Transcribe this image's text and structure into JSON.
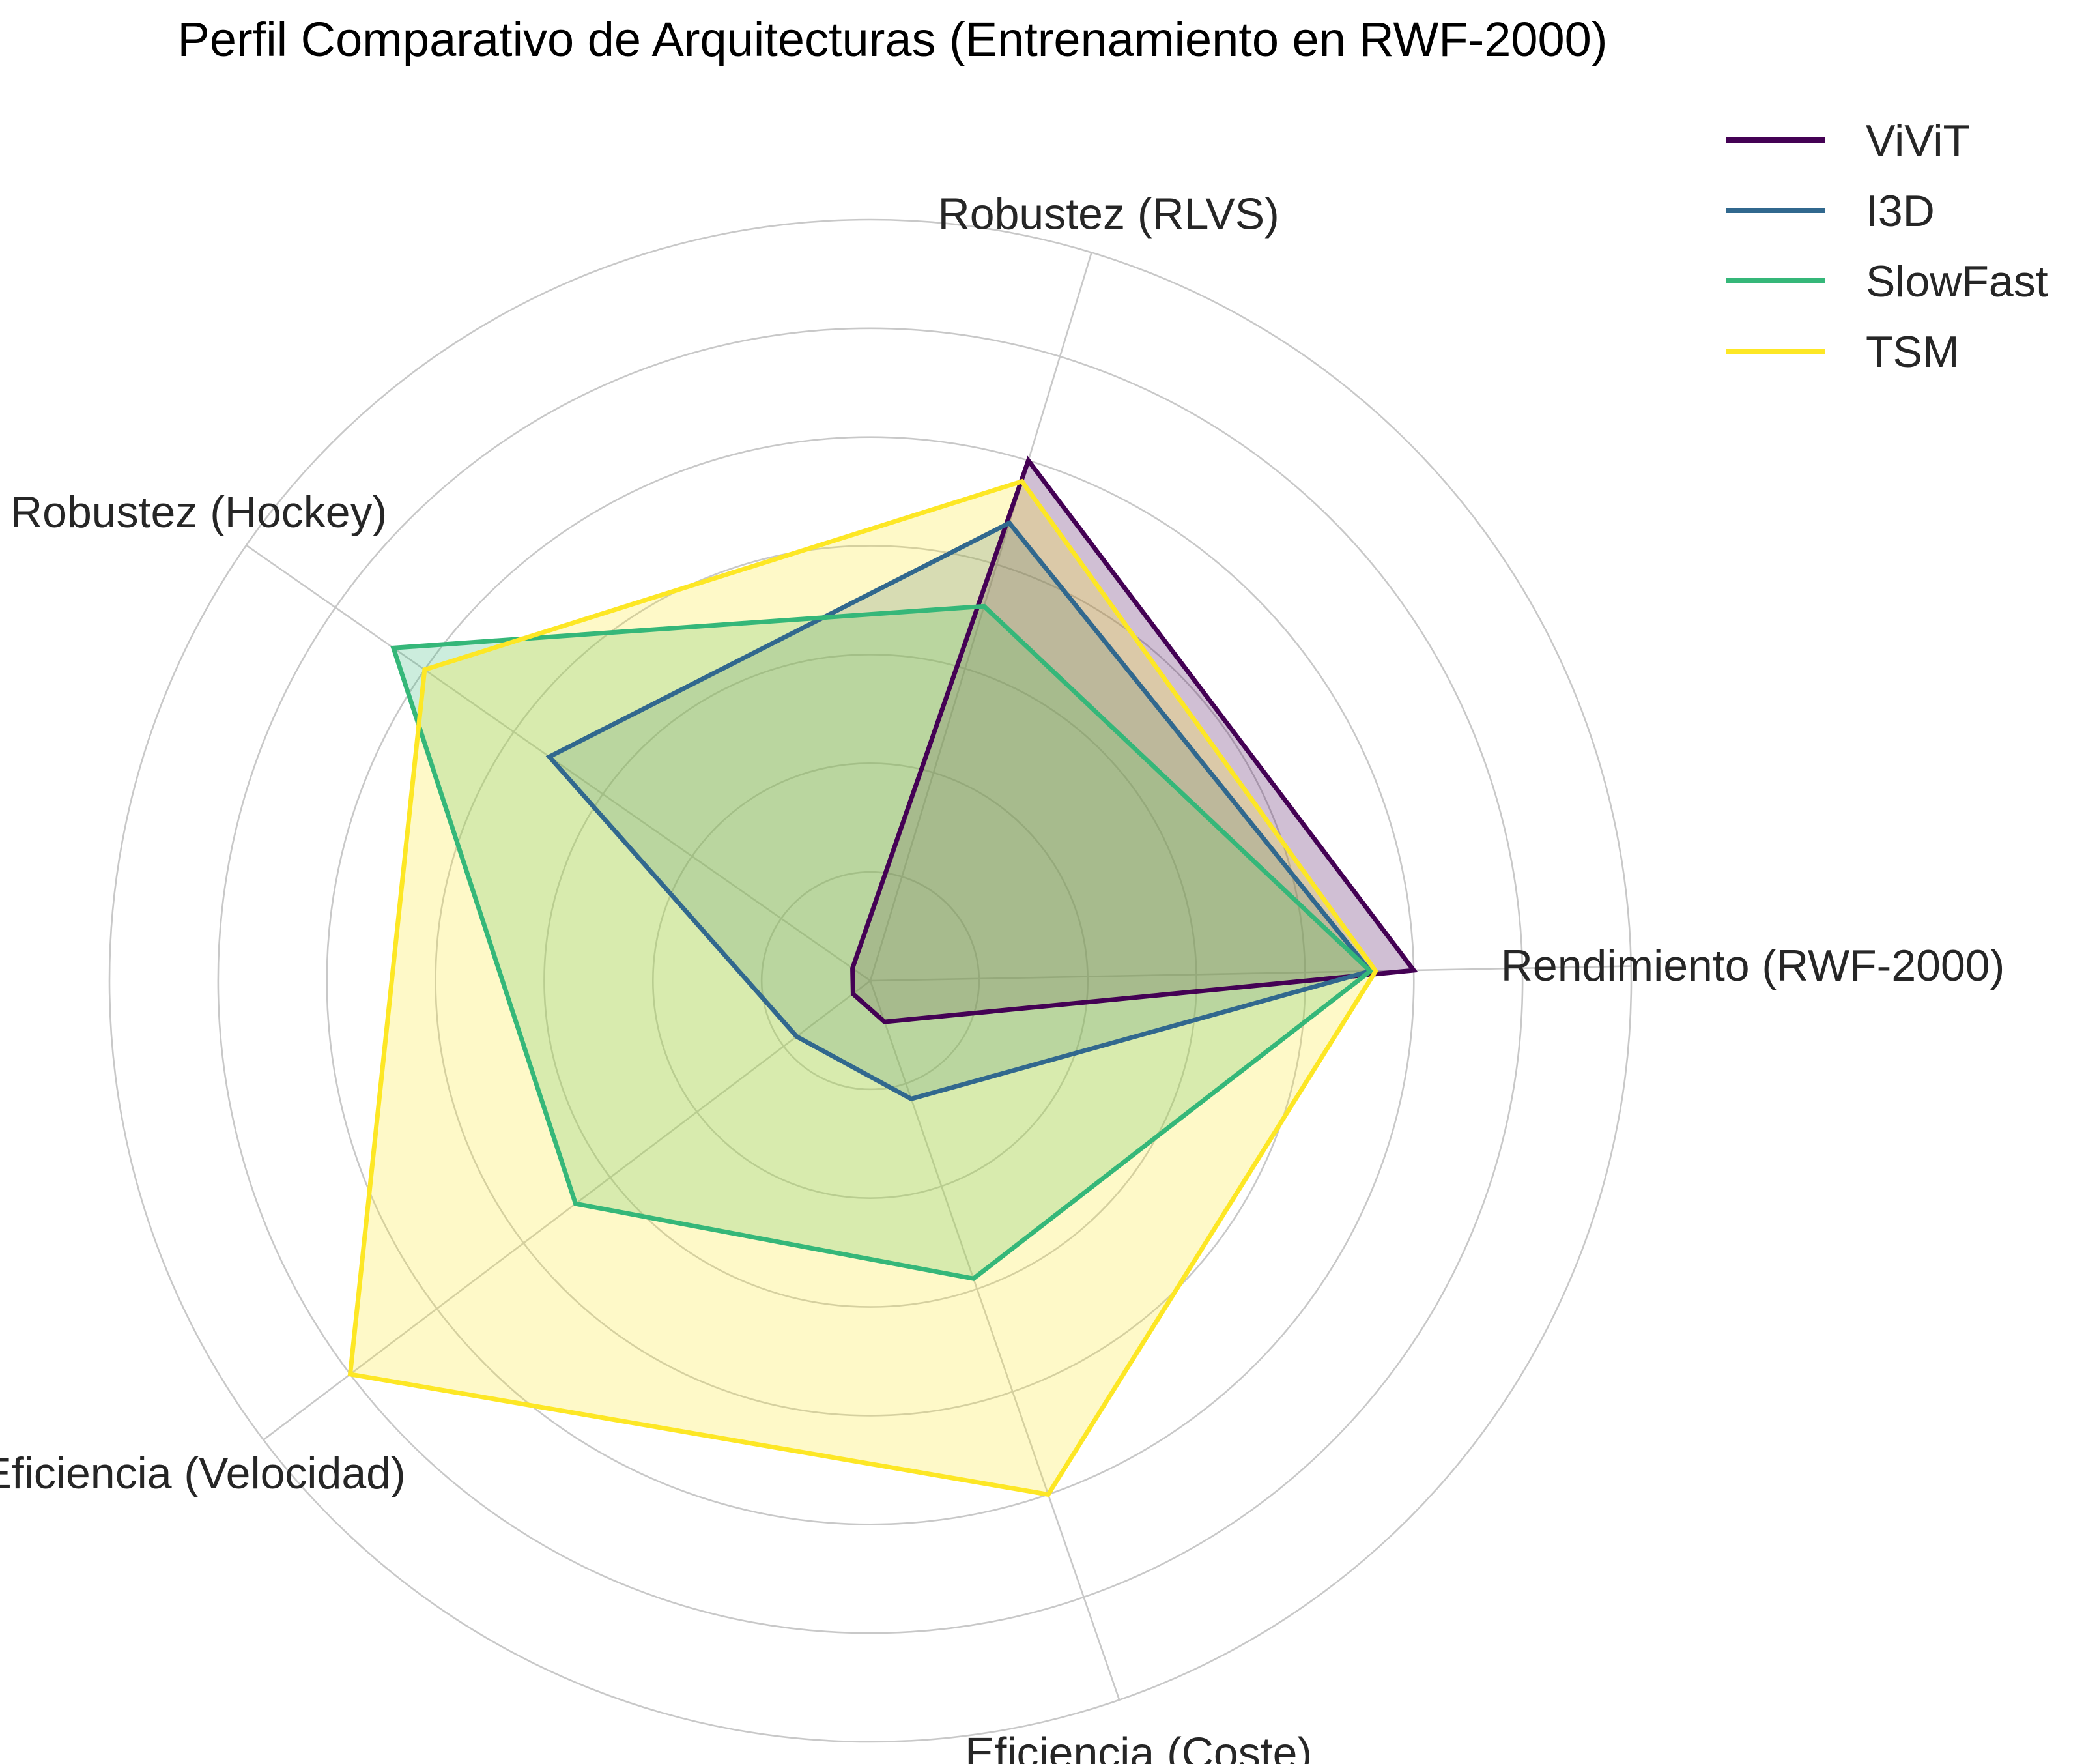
{
  "chart_data": {
    "type": "radar",
    "title": "Perfil Comparativo de Arquitecturas (Entrenamiento en RWF-2000)",
    "axes": [
      "Rendimiento (RWF-2000)",
      "Robustez (RLVS)",
      "Robustez (Hockey)",
      "Eficiencia (Velocidad)",
      "Eficiencia (Coste)"
    ],
    "rmax": 1.4,
    "grid_levels": [
      0.2,
      0.4,
      0.6,
      0.8,
      1.0,
      1.2,
      1.4
    ],
    "grid": true,
    "legend_position": "top-right",
    "series": [
      {
        "name": "ViViT",
        "color": "#440154",
        "fill_opacity": 0.25,
        "values": [
          1.0,
          1.0,
          0.04,
          0.04,
          0.08
        ]
      },
      {
        "name": "I3D",
        "color": "#31688e",
        "fill_opacity": 0.25,
        "values": [
          0.92,
          0.88,
          0.72,
          0.17,
          0.23
        ]
      },
      {
        "name": "SlowFast",
        "color": "#35b779",
        "fill_opacity": 0.25,
        "values": [
          0.92,
          0.72,
          1.07,
          0.68,
          0.58
        ]
      },
      {
        "name": "TSM",
        "color": "#fde725",
        "fill_opacity": 0.25,
        "values": [
          0.93,
          0.96,
          1.0,
          1.2,
          1.0
        ]
      }
    ]
  }
}
